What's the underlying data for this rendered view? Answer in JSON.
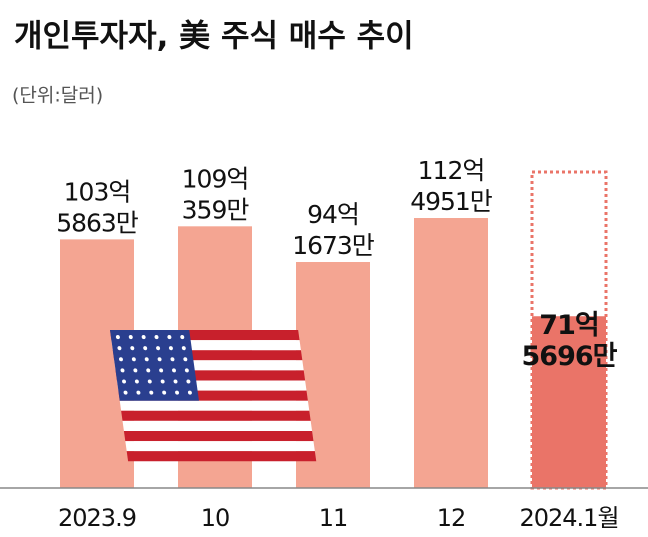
{
  "chart_data": {
    "type": "bar",
    "title": "개인투자자, 美 주식 매수 추이",
    "subtitle": "(단위:달러)",
    "categories": [
      "2023.9",
      "10",
      "11",
      "12",
      "2024.1월"
    ],
    "values": [
      10358630000,
      10903590000,
      9416730000,
      11249510000,
      7156960000
    ],
    "value_labels": [
      "103억\n5863만",
      "109억\n359만",
      "94억\n1673만",
      "112억\n4951만",
      "71억\n5696만"
    ],
    "colors": [
      "#f4a592",
      "#f4a592",
      "#f4a592",
      "#f4a592",
      "#ea7468"
    ],
    "ylim": [
      0,
      12000000000
    ]
  }
}
